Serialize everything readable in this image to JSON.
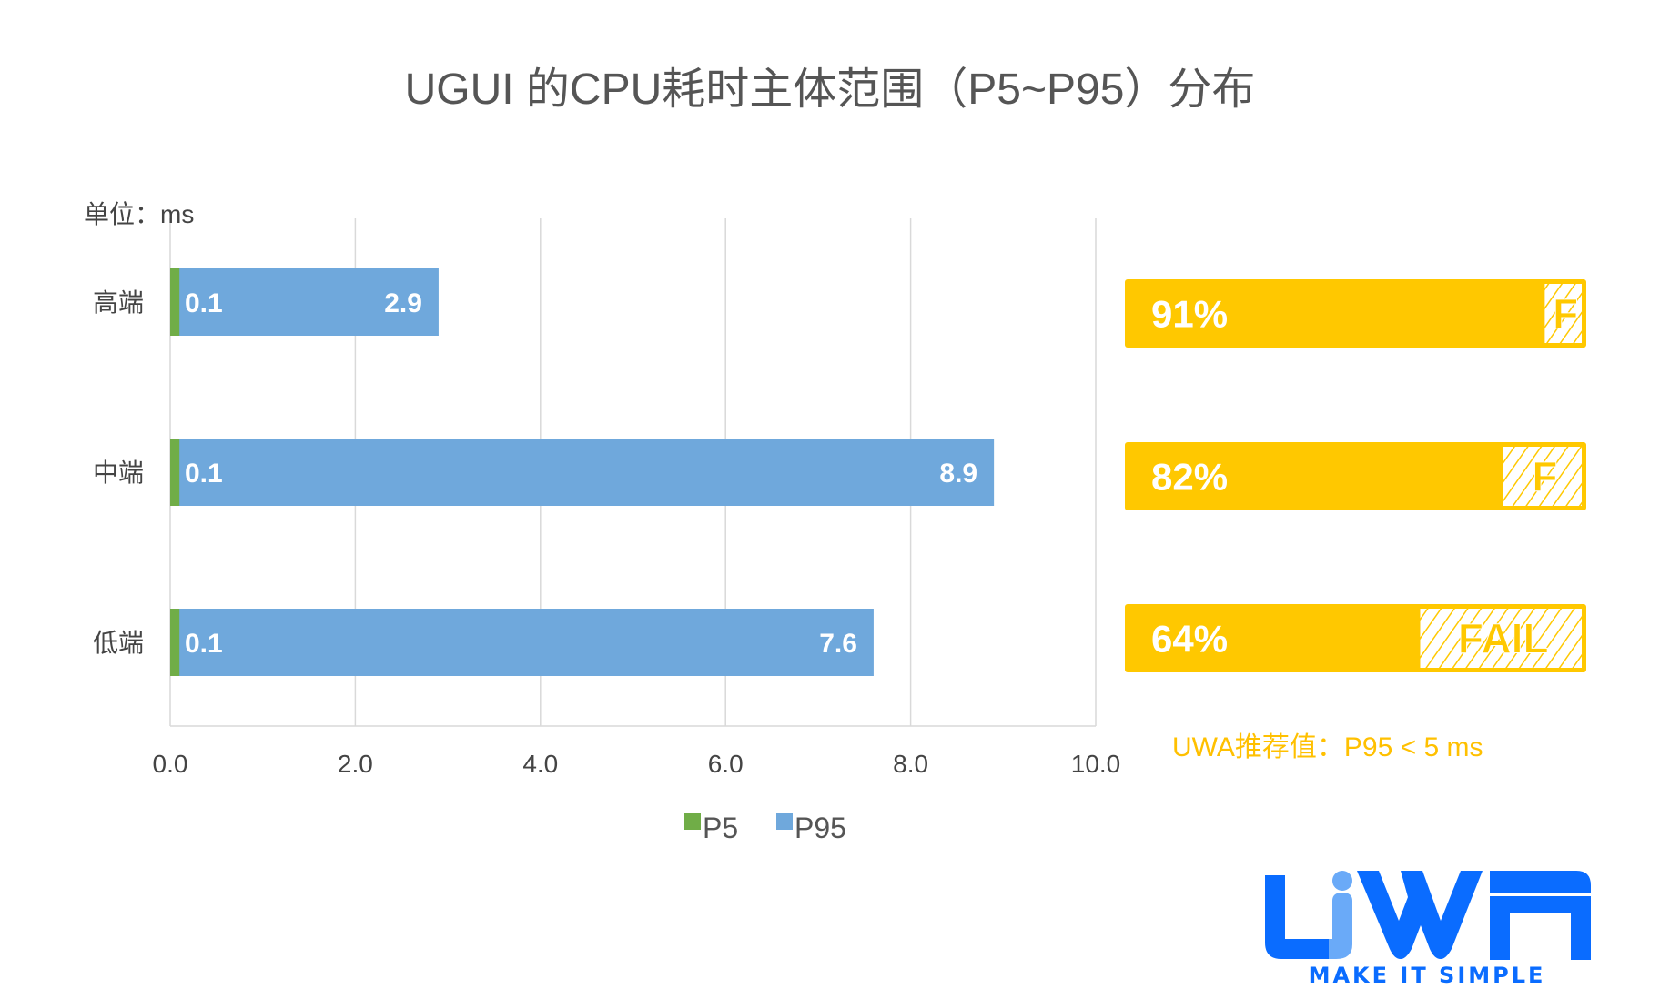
{
  "title": "UGUI 的CPU耗时主体范围（P5~P95）分布",
  "unit_label": "单位：ms",
  "recommendation": "UWA推荐值：P95 < 5 ms",
  "logo": {
    "text": "UWA",
    "tagline": "MAKE IT SIMPLE"
  },
  "colors": {
    "p5": "#70AD47",
    "p95": "#6FA8DC",
    "pass": "#FFC800",
    "logo": "#0A6CFF",
    "logo_light": "#6AAAF8"
  },
  "chart_data": [
    {
      "type": "bar",
      "orientation": "horizontal",
      "categories": [
        "高端",
        "中端",
        "低端"
      ],
      "series": [
        {
          "name": "P5",
          "values": [
            0.1,
            0.1,
            0.1
          ],
          "labels": [
            "0.1",
            "0.1",
            "0.1"
          ]
        },
        {
          "name": "P95",
          "values": [
            2.9,
            8.9,
            7.6
          ],
          "labels": [
            "2.9",
            "8.9",
            "7.6"
          ]
        }
      ],
      "xlim": [
        0,
        10
      ],
      "xticks": [
        "0.0",
        "2.0",
        "4.0",
        "6.0",
        "8.0",
        "10.0"
      ],
      "xtick_values": [
        0,
        2,
        4,
        6,
        8,
        10
      ],
      "grid": true,
      "legend": [
        "P5",
        "P95"
      ],
      "legend_placement": "bottom"
    },
    {
      "type": "bar",
      "orientation": "horizontal",
      "categories": [
        "高端",
        "中端",
        "低端"
      ],
      "values": [
        91,
        82,
        64
      ],
      "labels": [
        "91%",
        "82%",
        "64%"
      ],
      "fail_labels": [
        "F",
        "F",
        "FAIL"
      ],
      "xlim": [
        0,
        100
      ]
    }
  ]
}
